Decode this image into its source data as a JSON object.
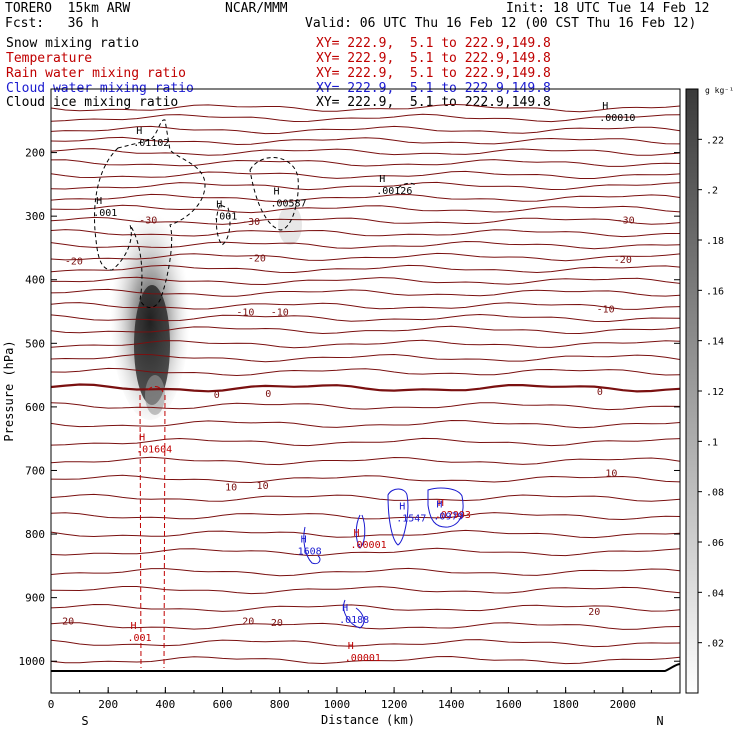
{
  "header": {
    "model": "TORERO  15km ARW",
    "center": "NCAR/MMM",
    "init": "Init: 18 UTC Tue 14 Feb 12",
    "fcst": "Fcst:   36 h",
    "valid": "Valid: 06 UTC Thu 16 Feb 12 (00 CST Thu 16 Feb 12)"
  },
  "fields": [
    {
      "name": "Snow mixing ratio",
      "xy": "",
      "color": "#000000"
    },
    {
      "name": "Temperature",
      "xy": "XY= 222.9,  5.1 to 222.9,149.8",
      "color": "#c00000"
    },
    {
      "name": "Rain water mixing ratio",
      "xy": "XY= 222.9,  5.1 to 222.9,149.8",
      "color": "#c00000"
    },
    {
      "name": "Cloud water mixing ratio",
      "xy": "XY= 222.9,  5.1 to 222.9,149.8",
      "color": "#1a1ad0"
    },
    {
      "name": "Cloud ice mixing ratio",
      "xy": "XY= 222.9,  5.1 to 222.9,149.8",
      "color": "#000000"
    }
  ],
  "xy_first": "XY= 222.9,  5.1 to 222.9,149.8",
  "chart_data": {
    "type": "cross-section",
    "xlabel": "Distance (km)",
    "ylabel": "Pressure (hPa)",
    "xlim": [
      0,
      2200
    ],
    "ylim": [
      1050,
      100
    ],
    "xticks": [
      0,
      200,
      400,
      600,
      800,
      1000,
      1200,
      1400,
      1600,
      1800,
      2000
    ],
    "yticks": [
      200,
      300,
      400,
      500,
      600,
      700,
      800,
      900,
      1000
    ],
    "end_labels": {
      "left": "S",
      "right": "N"
    },
    "colorbar": {
      "unit": "g kg⁻¹",
      "ticks": [
        ".02",
        ".04",
        ".06",
        ".08",
        ".1",
        ".12",
        ".14",
        ".16",
        ".18",
        ".2",
        ".22"
      ]
    },
    "temperature_labels": [
      {
        "text": "-30",
        "x": 340,
        "p": 305
      },
      {
        "text": "-30",
        "x": 700,
        "p": 308
      },
      {
        "text": "-30",
        "x": 2010,
        "p": 305
      },
      {
        "text": "-20",
        "x": 80,
        "p": 370
      },
      {
        "text": "-20",
        "x": 720,
        "p": 365
      },
      {
        "text": "-20",
        "x": 2000,
        "p": 367
      },
      {
        "text": "-10",
        "x": 680,
        "p": 450
      },
      {
        "text": "-10",
        "x": 800,
        "p": 450
      },
      {
        "text": "-10",
        "x": 1940,
        "p": 445
      },
      {
        "text": "0",
        "x": 580,
        "p": 580
      },
      {
        "text": "0",
        "x": 760,
        "p": 578
      },
      {
        "text": "0",
        "x": 1920,
        "p": 575
      },
      {
        "text": "10",
        "x": 630,
        "p": 725
      },
      {
        "text": "10",
        "x": 740,
        "p": 723
      },
      {
        "text": "10",
        "x": 1960,
        "p": 703
      },
      {
        "text": "20",
        "x": 60,
        "p": 936
      },
      {
        "text": "20",
        "x": 690,
        "p": 936
      },
      {
        "text": "20",
        "x": 790,
        "p": 938
      },
      {
        "text": "20",
        "x": 1900,
        "p": 921
      }
    ],
    "maxima_labels": [
      {
        "text": ".01102",
        "x": 340,
        "p": 190,
        "color": "#000000"
      },
      {
        "text": ".00587",
        "x": 820,
        "p": 285,
        "color": "#000000"
      },
      {
        "text": ".00126",
        "x": 1190,
        "p": 265,
        "color": "#000000"
      },
      {
        "text": ".00010",
        "x": 1970,
        "p": 150,
        "color": "#000000"
      },
      {
        "text": ".001",
        "x": 200,
        "p": 300,
        "color": "#000000"
      },
      {
        "text": ".001",
        "x": 620,
        "p": 305,
        "color": "#000000"
      },
      {
        "text": ".01604",
        "x": 350,
        "p": 672,
        "color": "#c00000"
      },
      {
        "text": ".001",
        "x": 320,
        "p": 968,
        "color": "#c00000"
      },
      {
        "text": ".00001",
        "x": 1100,
        "p": 822,
        "color": "#c00000"
      },
      {
        "text": ".00001",
        "x": 1080,
        "p": 1000,
        "color": "#c00000"
      },
      {
        "text": ".02993",
        "x": 1395,
        "p": 775,
        "color": "#c00000"
      },
      {
        "text": "1608",
        "x": 915,
        "p": 832,
        "color": "#1a1ad0"
      },
      {
        "text": ".1547",
        "x": 1260,
        "p": 780,
        "color": "#1a1ad0"
      },
      {
        "text": ".0188",
        "x": 1060,
        "p": 940,
        "color": "#1a1ad0"
      },
      {
        "text": ".0979",
        "x": 1390,
        "p": 777,
        "color": "#1a1ad0"
      }
    ]
  }
}
